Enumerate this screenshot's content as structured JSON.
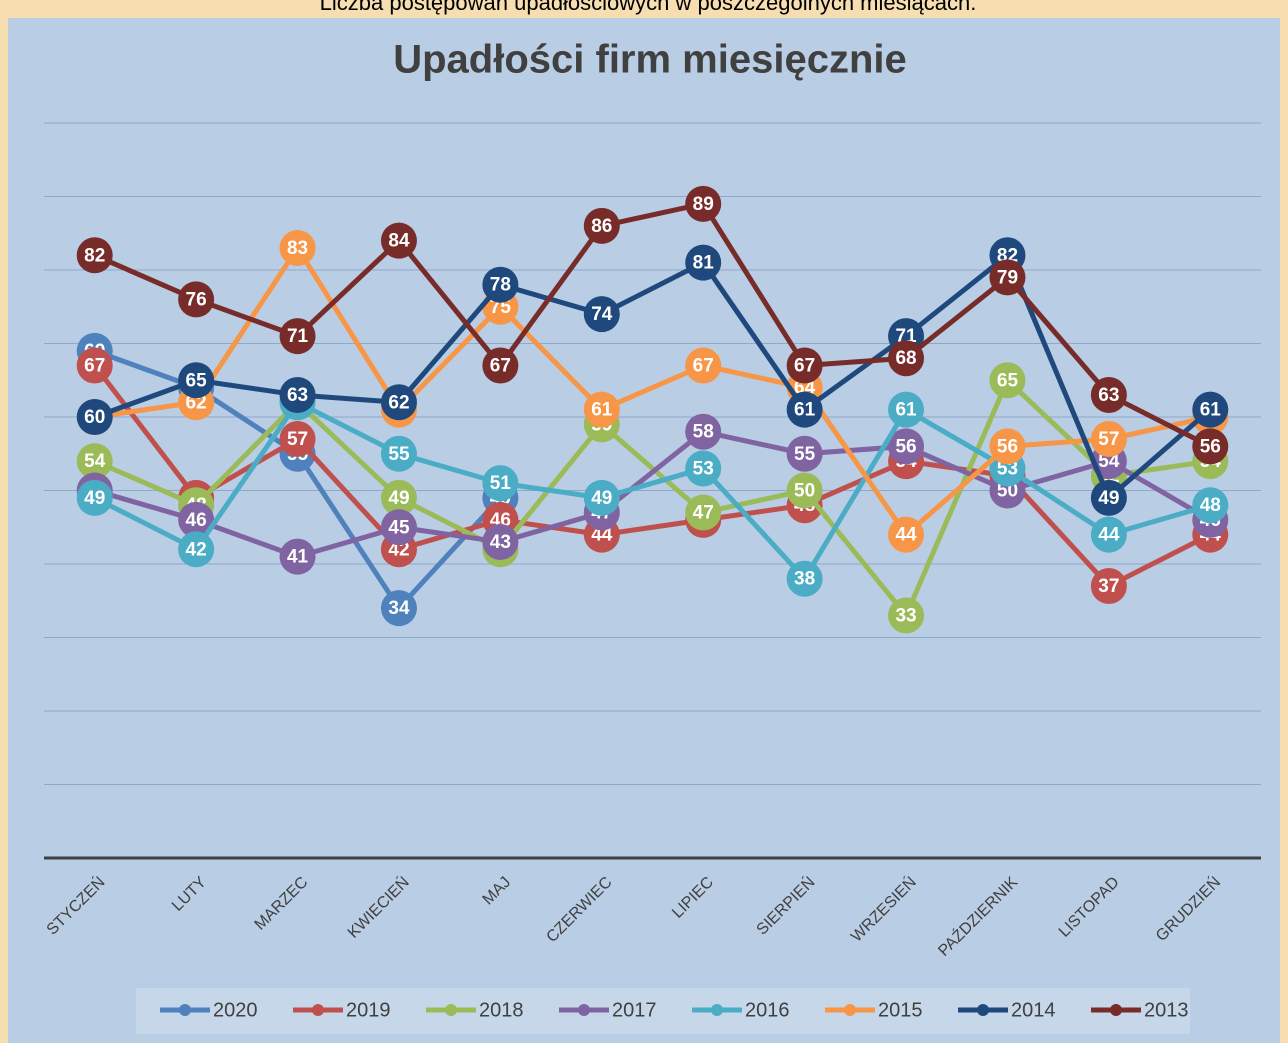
{
  "chart_data": {
    "type": "line",
    "subtitle": "Liczba postępowań upadłościowych w poszczególnych miesiącach.",
    "title": "Upadłości firm miesięcznie",
    "categories": [
      "STYCZEŃ",
      "LUTY",
      "MARZEC",
      "KWIECIEŃ",
      "MAJ",
      "CZERWIEC",
      "LIPIEC",
      "SIERPIEŃ",
      "WRZESIEŃ",
      "PAŹDZIERNIK",
      "LISTOPAD",
      "GRUDZIEŃ"
    ],
    "ylim": [
      0,
      100
    ],
    "yticks": [
      0,
      10,
      20,
      30,
      40,
      50,
      60,
      70,
      80,
      90,
      100
    ],
    "grid": true,
    "legend": "bottom",
    "series": [
      {
        "name": "2020",
        "color": "#4f81bd",
        "values": [
          69,
          64,
          55,
          34,
          49,
          null,
          null,
          null,
          null,
          null,
          null,
          null
        ]
      },
      {
        "name": "2019",
        "color": "#c0504d",
        "values": [
          67,
          49,
          57,
          42,
          46,
          44,
          46,
          48,
          54,
          52,
          37,
          44
        ]
      },
      {
        "name": "2018",
        "color": "#9bbb59",
        "values": [
          54,
          48,
          62,
          49,
          42,
          59,
          47,
          50,
          33,
          65,
          52,
          54
        ]
      },
      {
        "name": "2017",
        "color": "#8064a2",
        "values": [
          50,
          46,
          41,
          45,
          43,
          47,
          58,
          55,
          56,
          50,
          54,
          46
        ]
      },
      {
        "name": "2016",
        "color": "#4bacc6",
        "values": [
          49,
          42,
          62,
          55,
          51,
          49,
          53,
          38,
          61,
          53,
          44,
          48
        ]
      },
      {
        "name": "2015",
        "color": "#f79646",
        "values": [
          60,
          62,
          83,
          61,
          75,
          61,
          67,
          64,
          44,
          56,
          57,
          60
        ]
      },
      {
        "name": "2014",
        "color": "#1f497d",
        "values": [
          60,
          65,
          63,
          62,
          78,
          74,
          81,
          61,
          71,
          82,
          49,
          61
        ]
      },
      {
        "name": "2013",
        "color": "#772c2a",
        "values": [
          82,
          76,
          71,
          84,
          67,
          86,
          89,
          67,
          68,
          79,
          63,
          56
        ]
      }
    ]
  }
}
